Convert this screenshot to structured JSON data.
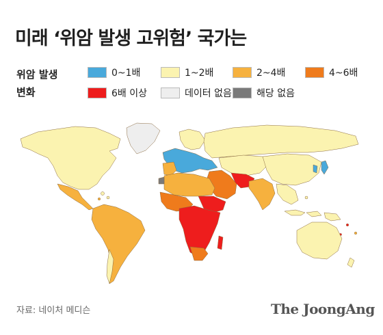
{
  "title": "미래 ‘위암 발생 고위험’ 국가는",
  "legend": {
    "label_line1": "위암 발생",
    "label_line2": "변화",
    "items": [
      {
        "label": "0~1배",
        "color": "#49a9db"
      },
      {
        "label": "1~2배",
        "color": "#fbf3b0"
      },
      {
        "label": "2~4배",
        "color": "#f6b13e"
      },
      {
        "label": "4~6배",
        "color": "#ef7b1c"
      },
      {
        "label": "6배 이상",
        "color": "#ee1d1d"
      },
      {
        "label": "데이터 없음",
        "color": "#eeeeee"
      },
      {
        "label": "해당 없음",
        "color": "#7a7a7a"
      }
    ]
  },
  "source": "자료: 네이처 메디슨",
  "logo": "The JoongAng"
}
